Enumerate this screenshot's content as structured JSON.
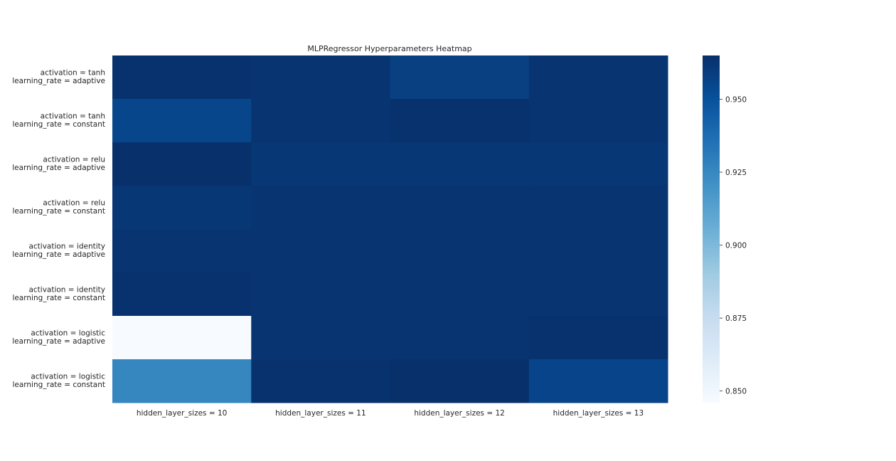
{
  "chart_data": {
    "type": "heatmap",
    "title": "MLPRegressor Hyperparameters Heatmap",
    "x_categories": [
      "hidden_layer_sizes = 10",
      "hidden_layer_sizes = 11",
      "hidden_layer_sizes = 12",
      "hidden_layer_sizes = 13"
    ],
    "y_categories": [
      [
        "activation = tanh",
        "learning_rate = adaptive"
      ],
      [
        "activation = tanh",
        "learning_rate = constant"
      ],
      [
        "activation = relu",
        "learning_rate = adaptive"
      ],
      [
        "activation = relu",
        "learning_rate = constant"
      ],
      [
        "activation = identity",
        "learning_rate = adaptive"
      ],
      [
        "activation = identity",
        "learning_rate = constant"
      ],
      [
        "activation = logistic",
        "learning_rate = adaptive"
      ],
      [
        "activation = logistic",
        "learning_rate = constant"
      ]
    ],
    "values": [
      [
        0.964,
        0.963,
        0.958,
        0.963
      ],
      [
        0.955,
        0.963,
        0.964,
        0.963
      ],
      [
        0.965,
        0.962,
        0.962,
        0.962
      ],
      [
        0.962,
        0.963,
        0.963,
        0.963
      ],
      [
        0.963,
        0.963,
        0.963,
        0.963
      ],
      [
        0.964,
        0.963,
        0.963,
        0.963
      ],
      [
        0.846,
        0.963,
        0.963,
        0.964
      ],
      [
        0.926,
        0.964,
        0.965,
        0.956
      ]
    ],
    "colormap": "Blues",
    "colorbar": {
      "vmin": 0.846,
      "vmax": 0.965,
      "ticks": [
        0.85,
        0.875,
        0.9,
        0.925,
        0.95
      ],
      "tick_labels": [
        "0.850",
        "0.875",
        "0.900",
        "0.925",
        "0.950"
      ]
    },
    "grid": false
  }
}
